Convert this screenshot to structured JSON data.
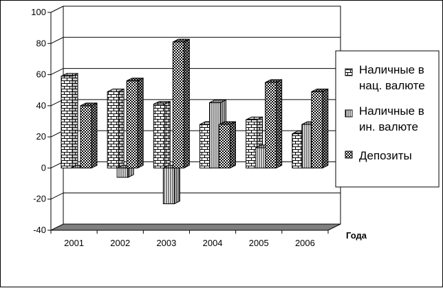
{
  "chart_data": {
    "type": "bar",
    "title": "",
    "xlabel": "Года",
    "ylabel": "",
    "ylim": [
      -40,
      100
    ],
    "yticks": [
      -40,
      -20,
      0,
      20,
      40,
      60,
      80,
      100
    ],
    "categories": [
      "2001",
      "2002",
      "2003",
      "2004",
      "2005",
      "2006"
    ],
    "series": [
      {
        "name": "Наличные в нац. валюте",
        "name_lines": [
          "Наличные в",
          "нац. валюте"
        ],
        "values": [
          59,
          49,
          41,
          28,
          31,
          22
        ],
        "pattern": "bricks"
      },
      {
        "name": "Наличные в ин. валюте",
        "name_lines": [
          "Наличные в",
          "ин. валюте"
        ],
        "values": [
          0,
          -6,
          -23,
          42,
          13,
          28
        ],
        "pattern": "vertical"
      },
      {
        "name": "Депозиты",
        "name_lines": [
          "Депозиты"
        ],
        "values": [
          40,
          56,
          81,
          28,
          55,
          49
        ],
        "pattern": "dots"
      }
    ],
    "grid": true,
    "legend_position": "right"
  }
}
